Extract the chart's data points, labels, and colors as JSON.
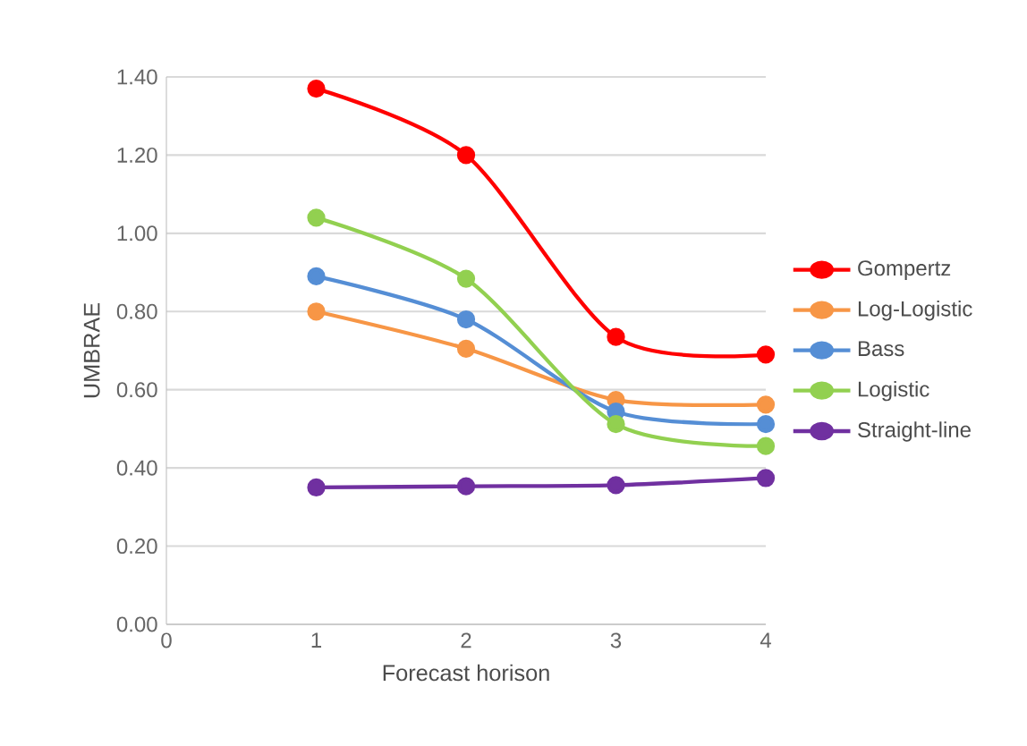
{
  "chart_data": {
    "type": "line",
    "xlabel": "Forecast horison",
    "ylabel": "UMBRAE",
    "x": [
      1,
      2,
      3,
      4
    ],
    "series": [
      {
        "name": "Gompertz",
        "color": "#ff0000",
        "values": [
          1.37,
          1.2,
          0.735,
          0.69
        ]
      },
      {
        "name": "Log-Logistic",
        "color": "#f79646",
        "values": [
          0.8,
          0.705,
          0.574,
          0.562
        ]
      },
      {
        "name": "Bass",
        "color": "#558ed5",
        "values": [
          0.89,
          0.78,
          0.544,
          0.512
        ]
      },
      {
        "name": "Logistic",
        "color": "#92d050",
        "values": [
          1.04,
          0.884,
          0.512,
          0.456
        ]
      },
      {
        "name": "Straight-line",
        "color": "#7030a0",
        "values": [
          0.35,
          0.353,
          0.356,
          0.374
        ]
      }
    ],
    "xlim": [
      0,
      4
    ],
    "xticks": [
      0,
      1,
      2,
      3,
      4
    ],
    "ylim": [
      0,
      1.4
    ],
    "yticks": [
      {
        "value": 0,
        "label": "0.00"
      },
      {
        "value": 0.2,
        "label": "0.20"
      },
      {
        "value": 0.4,
        "label": "0.40"
      },
      {
        "value": 0.6,
        "label": "0.60"
      },
      {
        "value": 0.8,
        "label": "0.80"
      },
      {
        "value": 1.0,
        "label": "1.00"
      },
      {
        "value": 1.2,
        "label": "1.20"
      },
      {
        "value": 1.4,
        "label": "1.40"
      }
    ],
    "grid": "y",
    "legend": "right",
    "marker": "circle",
    "line_style": "solid"
  }
}
